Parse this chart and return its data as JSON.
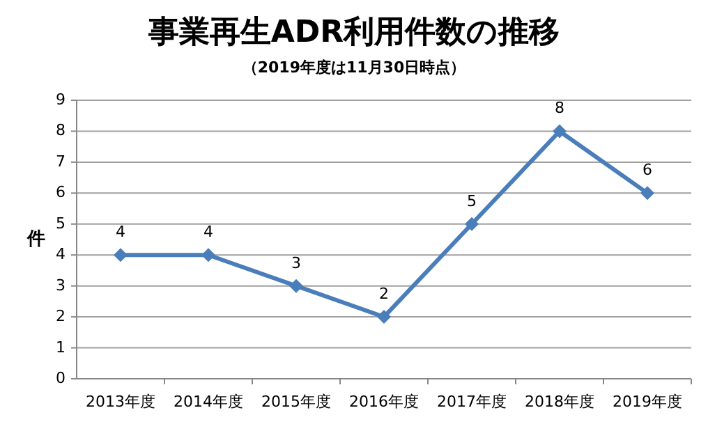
{
  "chart_data": {
    "type": "line",
    "title": "事業再生ADR利用件数の推移",
    "subtitle": "（2019年度は11月30日時点）",
    "ylabel": "件",
    "categories": [
      "2013年度",
      "2014年度",
      "2015年度",
      "2016年度",
      "2017年度",
      "2018年度",
      "2019年度"
    ],
    "series": [
      {
        "color": "#4a7ebb",
        "values": [
          4,
          4,
          3,
          2,
          5,
          8,
          6
        ]
      }
    ],
    "ylim": [
      0,
      9
    ],
    "yticks": [
      0,
      1,
      2,
      3,
      4,
      5,
      6,
      7,
      8,
      9
    ],
    "grid": "y",
    "marker": "diamond",
    "line_style": "solid",
    "data_labels": true
  }
}
